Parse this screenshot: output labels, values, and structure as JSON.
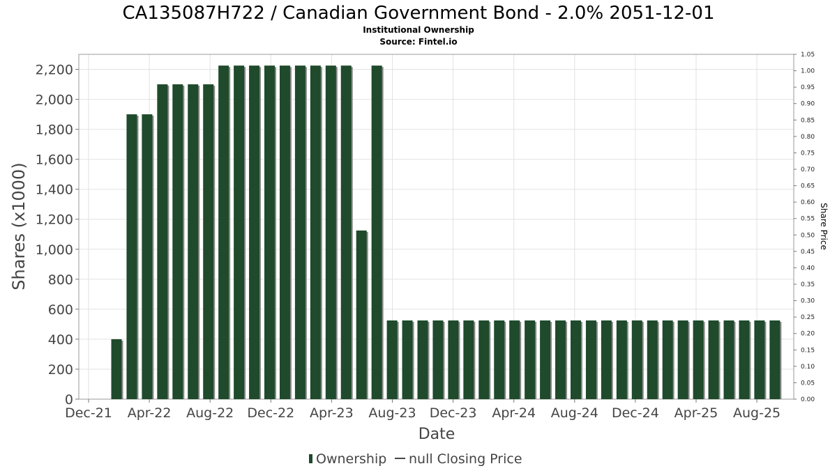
{
  "chart_data": {
    "type": "bar",
    "title": "CA135087H722 / Canadian Government Bond - 2.0% 2051-12-01",
    "subtitle": "Institutional Ownership",
    "source": "Source: Fintel.io",
    "xlabel": "Date",
    "ylabel": "Shares (x1000)",
    "y2label": "Share Price",
    "x_tick_labels": [
      "Dec-21",
      "Apr-22",
      "Aug-22",
      "Dec-22",
      "Apr-23",
      "Aug-23",
      "Dec-23",
      "Apr-24",
      "Aug-24",
      "Dec-24",
      "Apr-25",
      "Aug-25"
    ],
    "ylim": [
      0,
      2300
    ],
    "y_ticks": [
      0,
      200,
      400,
      600,
      800,
      1000,
      1200,
      1400,
      1600,
      1800,
      2000,
      2200
    ],
    "y_tick_labels": [
      "0",
      "200",
      "400",
      "600",
      "800",
      "1,000",
      "1,200",
      "1,400",
      "1,600",
      "1,800",
      "2,000",
      "2,200"
    ],
    "y2lim": [
      0,
      1.05
    ],
    "y2_tick_labels": [
      "0.00",
      "0.05",
      "0.10",
      "0.15",
      "0.20",
      "0.25",
      "0.30",
      "0.35",
      "0.40",
      "0.45",
      "0.50",
      "0.55",
      "0.60",
      "0.65",
      "0.70",
      "0.75",
      "0.80",
      "0.85",
      "0.90",
      "0.95",
      "1.00",
      "1.05"
    ],
    "grid": true,
    "legend_position": "bottom-center",
    "bar_color": "#1f4a2b",
    "series": [
      {
        "name": "Ownership",
        "values": [
          400,
          1900,
          1900,
          2100,
          2100,
          2100,
          2100,
          2225,
          2225,
          2225,
          2225,
          2225,
          2225,
          2225,
          2225,
          2225,
          1125,
          2225,
          525,
          525,
          525,
          525,
          525,
          525,
          525,
          525,
          525,
          525,
          525,
          525,
          525,
          525,
          525,
          525,
          525,
          525,
          525,
          525,
          525,
          525,
          525,
          525,
          525,
          525
        ]
      }
    ],
    "legend": {
      "ownership_label": "Ownership",
      "price_label": "null Closing Price"
    }
  }
}
